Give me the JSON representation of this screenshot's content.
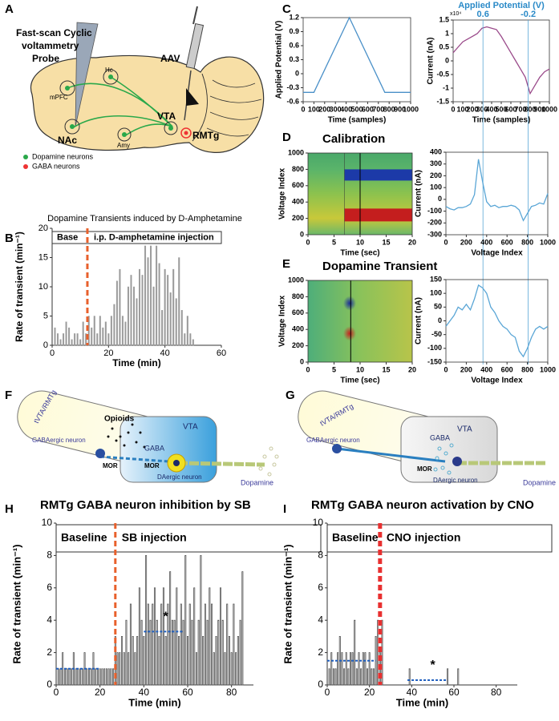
{
  "panel_labels": [
    "A",
    "B",
    "C",
    "D",
    "E",
    "F",
    "G",
    "H",
    "I"
  ],
  "diagram_a": {
    "probe": [
      "Fast-scan Cyclic",
      "voltammetry",
      "Probe"
    ],
    "virus": "AAV",
    "regions": [
      "Hc",
      "mPFC",
      "NAc",
      "Amy",
      "VTA",
      "RMTg"
    ],
    "legend": [
      "Dopamine neurons",
      "GABA neurons"
    ]
  },
  "diagram_f": {
    "labels": [
      "tVTA/RMTg",
      "GABAergic neuron",
      "Opioids",
      "VTA",
      "GABA",
      "MOR",
      "MOR",
      "DAergic neuron",
      "Dopamine"
    ]
  },
  "diagram_g": {
    "labels": [
      "tVTA/RMTg",
      "GABAergic neuron",
      "GABA",
      "VTA",
      "MOR",
      "DAergic neuron",
      "Dopamine"
    ]
  },
  "chart_data": [
    {
      "type": "bar",
      "title": "Dopamine Transients induced by D-Amphetamine",
      "x_label": "Time (min)",
      "y_label": "Rate of transient (min⁻¹)",
      "x": [
        1,
        2,
        3,
        4,
        5,
        6,
        7,
        8,
        9,
        10,
        11,
        12,
        13,
        14,
        15,
        16,
        17,
        18,
        19,
        20,
        21,
        22,
        23,
        24,
        25,
        26,
        27,
        28,
        29,
        30,
        31,
        32,
        33,
        34,
        35,
        36,
        37,
        38,
        39,
        40,
        41,
        42,
        43,
        44,
        45,
        46,
        47,
        48,
        49,
        50
      ],
      "values": [
        3,
        2,
        1,
        2,
        4,
        3,
        1,
        2,
        2,
        1,
        4,
        2,
        5,
        3,
        5,
        2,
        5,
        3,
        4,
        2,
        5,
        7,
        11,
        13,
        5,
        4,
        10,
        12,
        10,
        8,
        13,
        12,
        17,
        15,
        17,
        10,
        17,
        14,
        6,
        13,
        12,
        9,
        13,
        8,
        15,
        6,
        2,
        5,
        2,
        1
      ],
      "color": "#9a9a9a",
      "xlim": [
        0,
        60
      ],
      "xticks": [
        0,
        20,
        40,
        60
      ],
      "ylim": [
        0,
        20
      ],
      "yticks": [
        0,
        5,
        10,
        15,
        20
      ],
      "phases": [
        "Base",
        "i.p. D-amphetamine injection"
      ],
      "injection_x": 12.5,
      "injection_color": "#e8602c"
    },
    {
      "type": "line",
      "x_label": "Time (samples)",
      "y_label": "Applied Potential (V)",
      "x": [
        0,
        100,
        430,
        760,
        1000
      ],
      "values": [
        -0.4,
        -0.4,
        1.2,
        -0.4,
        -0.4
      ],
      "color": "#4a90c8",
      "xlim": [
        0,
        1000
      ],
      "xticks": [
        0,
        100,
        200,
        300,
        400,
        500,
        600,
        700,
        800,
        900,
        1000
      ],
      "ylim": [
        -0.6,
        1.2
      ],
      "yticks": [
        -0.6,
        -0.3,
        0,
        0.3,
        0.6,
        0.9,
        1.2
      ]
    },
    {
      "type": "line",
      "x_label": "Time (samples)",
      "y_label": "Current (nA)",
      "scale_label": "x10⁴",
      "top_label": "Applied Potential (V)",
      "vlines": [
        {
          "x": 310,
          "label": "0.6"
        },
        {
          "x": 780,
          "label": "-0.2"
        }
      ],
      "x": [
        0,
        50,
        100,
        150,
        200,
        250,
        300,
        350,
        400,
        450,
        500,
        550,
        600,
        650,
        700,
        750,
        800,
        850,
        900,
        950,
        1000
      ],
      "values": [
        0.3,
        0.5,
        0.7,
        0.8,
        0.9,
        1.0,
        1.2,
        1.25,
        1.2,
        1.15,
        0.9,
        0.6,
        0.3,
        0,
        -0.3,
        -0.6,
        -1.2,
        -0.9,
        -0.6,
        -0.4,
        -0.3
      ],
      "color": "#9a4a8a",
      "xlim": [
        0,
        1000
      ],
      "xticks": [
        0,
        100,
        200,
        300,
        400,
        500,
        600,
        700,
        800,
        900,
        1000
      ],
      "ylim": [
        -1.5,
        1.5
      ],
      "yticks": [
        -1.5,
        -1,
        -0.5,
        0,
        0.5,
        1,
        1.5
      ]
    },
    {
      "type": "heatmap",
      "title": "Calibration",
      "x_label": "Time (sec)",
      "y_label": "Voltage Index",
      "xlim": [
        0,
        20
      ],
      "xticks": [
        0,
        5,
        10,
        15,
        20
      ],
      "ylim": [
        0,
        1000
      ],
      "yticks": [
        0,
        200,
        400,
        600,
        800,
        1000
      ]
    },
    {
      "type": "line",
      "x_label": "Voltage Index",
      "y_label": "Current (nA)",
      "x": [
        0,
        40,
        80,
        120,
        160,
        200,
        240,
        280,
        320,
        360,
        400,
        440,
        480,
        520,
        560,
        600,
        640,
        680,
        720,
        760,
        800,
        840,
        880,
        920,
        960,
        1000
      ],
      "values": [
        -60,
        -80,
        -90,
        -70,
        -70,
        -60,
        -40,
        40,
        340,
        150,
        -20,
        -60,
        -50,
        -70,
        -60,
        -60,
        -50,
        -60,
        -90,
        -180,
        -120,
        -60,
        -50,
        -30,
        -40,
        50
      ],
      "color": "#5aa6d6",
      "xlim": [
        0,
        1000
      ],
      "xticks": [
        0,
        200,
        400,
        600,
        800,
        1000
      ],
      "ylim": [
        -300,
        400
      ],
      "yticks": [
        -300,
        -200,
        -100,
        0,
        100,
        200,
        300,
        400
      ]
    },
    {
      "type": "heatmap",
      "title": "Dopamine Transient",
      "x_label": "Time (sec)",
      "y_label": "Voltage Index",
      "xlim": [
        0,
        20
      ],
      "xticks": [
        0,
        5,
        10,
        15,
        20
      ],
      "ylim": [
        0,
        1000
      ],
      "yticks": [
        0,
        200,
        400,
        600,
        800,
        1000
      ]
    },
    {
      "type": "line",
      "x_label": "Voltage Index",
      "y_label": "Current (nA)",
      "x": [
        0,
        40,
        80,
        120,
        160,
        200,
        240,
        280,
        320,
        360,
        400,
        440,
        480,
        520,
        560,
        600,
        640,
        680,
        720,
        760,
        800,
        840,
        880,
        920,
        960,
        1000
      ],
      "values": [
        -20,
        0,
        20,
        50,
        40,
        60,
        40,
        80,
        130,
        120,
        100,
        50,
        30,
        0,
        -20,
        -30,
        -50,
        -60,
        -110,
        -130,
        -100,
        -60,
        -30,
        -20,
        -30,
        -20
      ],
      "color": "#5aa6d6",
      "xlim": [
        0,
        1000
      ],
      "xticks": [
        0,
        200,
        400,
        600,
        800,
        1000
      ],
      "ylim": [
        -150,
        150
      ],
      "yticks": [
        -150,
        -100,
        -50,
        0,
        50,
        100,
        150
      ]
    },
    {
      "type": "bar",
      "title": "RMTg GABA neuron inhibition by SB",
      "x_label": "Time (min)",
      "y_label": "Rate of transient (min⁻¹)",
      "x": [
        1,
        2,
        3,
        4,
        5,
        6,
        7,
        8,
        9,
        10,
        11,
        12,
        13,
        14,
        15,
        16,
        17,
        18,
        19,
        20,
        21,
        22,
        23,
        24,
        25,
        26,
        27,
        28,
        29,
        30,
        31,
        32,
        33,
        34,
        35,
        36,
        37,
        38,
        39,
        40,
        41,
        42,
        43,
        44,
        45,
        46,
        47,
        48,
        49,
        50,
        51,
        52,
        53,
        54,
        55,
        56,
        57,
        58,
        59,
        60,
        61,
        62,
        63,
        64,
        65,
        66,
        67,
        68,
        69,
        70,
        71,
        72,
        73,
        74,
        75,
        76,
        77,
        78,
        79,
        80,
        81,
        82,
        83,
        84,
        85
      ],
      "values": [
        1,
        1,
        2,
        1,
        1,
        1,
        1,
        2,
        1,
        1,
        1,
        1,
        2,
        1,
        1,
        1,
        2,
        1,
        1,
        1,
        1,
        1,
        1,
        1,
        1,
        1,
        3,
        2,
        2,
        3,
        2,
        4,
        2,
        5,
        3,
        2,
        3,
        6,
        4,
        3,
        8,
        5,
        4,
        5,
        6,
        4,
        3,
        5,
        6,
        3,
        5,
        7,
        4,
        4,
        6,
        3,
        5,
        4,
        8,
        3,
        5,
        4,
        6,
        2,
        4,
        8,
        3,
        5,
        4,
        6,
        5,
        2,
        3,
        4,
        6,
        4,
        2,
        5,
        3,
        2,
        5,
        2,
        3,
        4,
        7
      ],
      "color": "#555555",
      "xlim": [
        0,
        90
      ],
      "xticks": [
        0,
        20,
        40,
        60,
        80
      ],
      "ylim": [
        0,
        10
      ],
      "yticks": [
        0,
        2,
        4,
        6,
        8,
        10
      ],
      "phases": [
        "Baseline",
        "SB injection"
      ],
      "injection_x": 27,
      "injection_color": "#e8602c",
      "mean_lines": [
        {
          "x": [
            0,
            20
          ],
          "value": 1
        },
        {
          "x": [
            40,
            58
          ],
          "value": 3.3
        }
      ],
      "mean_color": "#1f5fbf",
      "annotation": {
        "text": "*",
        "x": 50,
        "y": 4.2
      }
    },
    {
      "type": "bar",
      "title": "RMTg GABA neuron activation by CNO",
      "x_label": "Time (min)",
      "y_label": "Rate of transient (min⁻¹)",
      "x": [
        1,
        2,
        3,
        4,
        5,
        6,
        7,
        8,
        9,
        10,
        11,
        12,
        13,
        14,
        15,
        16,
        17,
        18,
        19,
        20,
        21,
        22,
        23,
        24,
        25,
        26,
        39,
        57,
        62
      ],
      "values": [
        1,
        2,
        1,
        1,
        2,
        3,
        2,
        1,
        2,
        1,
        2,
        2,
        4,
        1,
        2,
        1,
        2,
        2,
        1,
        2,
        1,
        1,
        3,
        4,
        2,
        4,
        1,
        1,
        1
      ],
      "color": "#555555",
      "xlim": [
        0,
        90
      ],
      "xticks": [
        0,
        20,
        40,
        60,
        80
      ],
      "ylim": [
        0,
        10
      ],
      "yticks": [
        0,
        2,
        4,
        6,
        8,
        10
      ],
      "phases": [
        "Baseline",
        "CNO injection"
      ],
      "injection_x": 25,
      "injection_color": "#e83030",
      "mean_lines": [
        {
          "x": [
            0,
            23
          ],
          "value": 1.5
        },
        {
          "x": [
            38,
            57
          ],
          "value": 0.3
        }
      ],
      "mean_color": "#1f5fbf",
      "annotation": {
        "text": "*",
        "x": 50,
        "y": 1.2
      }
    }
  ]
}
